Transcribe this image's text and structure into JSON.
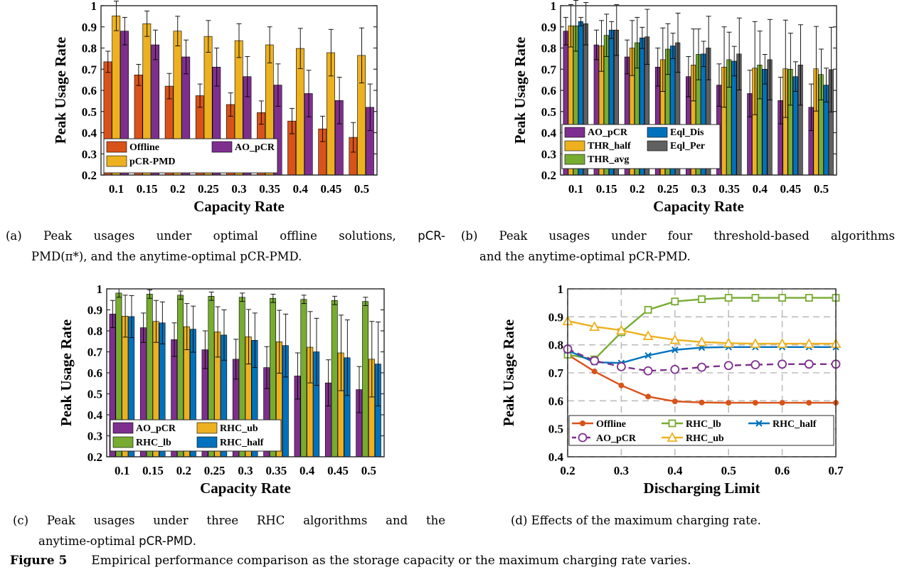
{
  "chart_data": [
    {
      "panel": "a",
      "type": "bar",
      "xlabel": "Capacity Rate",
      "ylabel": "Peak Usage Rate",
      "ylim": [
        0.2,
        1
      ],
      "yticks": [
        "0.2",
        "0.3",
        "0.4",
        "0.5",
        "0.6",
        "0.7",
        "0.8",
        "0.9",
        "1"
      ],
      "categories": [
        "0.1",
        "0.15",
        "0.2",
        "0.25",
        "0.3",
        "0.35",
        "0.4",
        "0.45",
        "0.5"
      ],
      "legend_placement": "bottom-left",
      "series": [
        {
          "name": "Offline",
          "color": "#d95319",
          "values": [
            0.735,
            0.673,
            0.62,
            0.575,
            0.533,
            0.495,
            0.455,
            0.418,
            0.378
          ],
          "err": [
            0.05,
            0.05,
            0.06,
            0.055,
            0.055,
            0.055,
            0.06,
            0.06,
            0.07
          ]
        },
        {
          "name": "pCR-PMD",
          "color": "#edb120",
          "values": [
            0.952,
            0.915,
            0.88,
            0.855,
            0.835,
            0.815,
            0.798,
            0.778,
            0.765
          ],
          "err": [
            0.07,
            0.06,
            0.07,
            0.075,
            0.08,
            0.085,
            0.095,
            0.11,
            0.13
          ]
        },
        {
          "name": "AO_pCR",
          "color": "#7e2f8e",
          "values": [
            0.88,
            0.815,
            0.758,
            0.71,
            0.665,
            0.625,
            0.585,
            0.552,
            0.52
          ],
          "err": [
            0.065,
            0.07,
            0.08,
            0.09,
            0.095,
            0.1,
            0.11,
            0.11,
            0.11
          ]
        }
      ]
    },
    {
      "panel": "b",
      "type": "bar",
      "xlabel": "Capacity Rate",
      "ylabel": "Peak Usage Rate",
      "ylim": [
        0.2,
        1
      ],
      "yticks": [
        "0.2",
        "0.3",
        "0.4",
        "0.5",
        "0.6",
        "0.7",
        "0.8",
        "0.9",
        "1"
      ],
      "categories": [
        "0.1",
        "0.15",
        "0.2",
        "0.25",
        "0.3",
        "0.35",
        "0.4",
        "0.45",
        "0.5"
      ],
      "legend_placement": "bottom-left",
      "series": [
        {
          "name": "AO_pCR",
          "color": "#7e2f8e",
          "values": [
            0.88,
            0.815,
            0.758,
            0.71,
            0.665,
            0.625,
            0.585,
            0.552,
            0.52
          ],
          "err": [
            0.065,
            0.07,
            0.08,
            0.09,
            0.095,
            0.1,
            0.11,
            0.11,
            0.11
          ]
        },
        {
          "name": "THR_half",
          "color": "#edb120",
          "values": [
            0.905,
            0.81,
            0.8,
            0.745,
            0.72,
            0.71,
            0.705,
            0.702,
            0.702
          ],
          "err": [
            0.1,
            0.12,
            0.13,
            0.15,
            0.17,
            0.19,
            0.22,
            0.23,
            0.2
          ]
        },
        {
          "name": "THR_avg",
          "color": "#77ac30",
          "values": [
            0.905,
            0.86,
            0.825,
            0.795,
            0.77,
            0.745,
            0.72,
            0.7,
            0.675
          ],
          "err": [
            0.12,
            0.1,
            0.12,
            0.12,
            0.12,
            0.13,
            0.16,
            0.17,
            0.12
          ]
        },
        {
          "name": "Eql_Dis",
          "color": "#0072bd",
          "values": [
            0.925,
            0.885,
            0.848,
            0.81,
            0.772,
            0.738,
            0.7,
            0.665,
            0.625
          ],
          "err": [
            0.02,
            0.04,
            0.05,
            0.06,
            0.06,
            0.07,
            0.07,
            0.07,
            0.08
          ]
        },
        {
          "name": "Eql_Per",
          "color": "#606060",
          "values": [
            0.915,
            0.885,
            0.853,
            0.825,
            0.8,
            0.772,
            0.745,
            0.72,
            0.698
          ],
          "err": [
            0.1,
            0.12,
            0.13,
            0.14,
            0.15,
            0.17,
            0.19,
            0.19,
            0.2
          ]
        }
      ]
    },
    {
      "panel": "c",
      "type": "bar",
      "xlabel": "Capacity Rate",
      "ylabel": "Peak Usage Rate",
      "ylim": [
        0.2,
        1
      ],
      "yticks": [
        "0.2",
        "0.3",
        "0.4",
        "0.5",
        "0.6",
        "0.7",
        "0.8",
        "0.9",
        "1"
      ],
      "categories": [
        "0.1",
        "0.15",
        "0.2",
        "0.25",
        "0.3",
        "0.35",
        "0.4",
        "0.45",
        "0.5"
      ],
      "legend_placement": "bottom-left",
      "series": [
        {
          "name": "AO_pCR",
          "color": "#7e2f8e",
          "values": [
            0.88,
            0.815,
            0.758,
            0.71,
            0.665,
            0.625,
            0.585,
            0.552,
            0.52
          ],
          "err": [
            0.065,
            0.07,
            0.08,
            0.09,
            0.095,
            0.1,
            0.11,
            0.11,
            0.11
          ]
        },
        {
          "name": "RHC_lb",
          "color": "#77ac30",
          "values": [
            0.98,
            0.975,
            0.97,
            0.965,
            0.96,
            0.955,
            0.95,
            0.945,
            0.94
          ],
          "err": [
            0.02,
            0.02,
            0.02,
            0.02,
            0.02,
            0.02,
            0.02,
            0.02,
            0.02
          ]
        },
        {
          "name": "RHC_ub",
          "color": "#edb120",
          "values": [
            0.87,
            0.845,
            0.82,
            0.795,
            0.772,
            0.748,
            0.722,
            0.695,
            0.665
          ],
          "err": [
            0.1,
            0.1,
            0.11,
            0.12,
            0.13,
            0.15,
            0.17,
            0.18,
            0.18
          ]
        },
        {
          "name": "RHC_half",
          "color": "#0072bd",
          "values": [
            0.868,
            0.838,
            0.808,
            0.78,
            0.755,
            0.73,
            0.7,
            0.672,
            0.642
          ],
          "err": [
            0.1,
            0.1,
            0.11,
            0.12,
            0.13,
            0.15,
            0.16,
            0.18,
            0.2
          ]
        }
      ]
    },
    {
      "panel": "d",
      "type": "line",
      "xlabel": "Discharging Limit",
      "ylabel": "Peak Usage Rate",
      "xlim": [
        0.2,
        0.7
      ],
      "ylim": [
        0.4,
        1
      ],
      "xticks": [
        "0.2",
        "0.3",
        "0.4",
        "0.5",
        "0.6",
        "0.7"
      ],
      "yticks": [
        "0.4",
        "0.5",
        "0.6",
        "0.7",
        "0.8",
        "0.9",
        "1"
      ],
      "grid": true,
      "legend_placement": "bottom",
      "x": [
        0.2,
        0.25,
        0.3,
        0.35,
        0.4,
        0.45,
        0.5,
        0.55,
        0.6,
        0.65,
        0.7
      ],
      "series": [
        {
          "name": "Offline",
          "color": "#d95319",
          "marker": "dot",
          "dashed": false,
          "values": [
            0.765,
            0.705,
            0.655,
            0.615,
            0.598,
            0.594,
            0.593,
            0.593,
            0.593,
            0.593,
            0.593
          ]
        },
        {
          "name": "RHC_lb",
          "color": "#77ac30",
          "marker": "square",
          "dashed": false,
          "values": [
            0.765,
            0.748,
            0.845,
            0.925,
            0.955,
            0.963,
            0.968,
            0.968,
            0.968,
            0.968,
            0.968
          ]
        },
        {
          "name": "RHC_half",
          "color": "#0072bd",
          "marker": "x",
          "dashed": false,
          "values": [
            0.78,
            0.738,
            0.735,
            0.762,
            0.782,
            0.79,
            0.792,
            0.792,
            0.792,
            0.792,
            0.792
          ]
        },
        {
          "name": "AO_pCR",
          "color": "#7e2f8e",
          "marker": "circle",
          "dashed": true,
          "values": [
            0.785,
            0.743,
            0.722,
            0.707,
            0.712,
            0.72,
            0.726,
            0.729,
            0.731,
            0.731,
            0.731
          ]
        },
        {
          "name": "RHC_ub",
          "color": "#edb120",
          "marker": "triangle",
          "dashed": false,
          "values": [
            0.885,
            0.865,
            0.852,
            0.832,
            0.818,
            0.81,
            0.806,
            0.804,
            0.804,
            0.804,
            0.804
          ]
        }
      ]
    }
  ],
  "captions": {
    "a_pre": "(a) Peak usages under optimal offline solutions, ",
    "a_mono": "pCR-",
    "a_line2": "PMD(π*), and the anytime-optimal pCR-PMD.",
    "b_line1": "(b) Peak usages under four threshold-based algorithms",
    "b_line2": "and the anytime-optimal pCR-PMD.",
    "c_line1": "(c) Peak usages under three RHC algorithms and the",
    "c_line2_pre": "anytime-optimal ",
    "c_line2_mono": "pCR-PMD",
    "c_line2_post": ".",
    "d": "(d) Effects of the maximum charging rate.",
    "figure_label": "Figure 5",
    "figure_text": "Empirical performance comparison as the storage capacity or the maximum charging rate varies."
  }
}
